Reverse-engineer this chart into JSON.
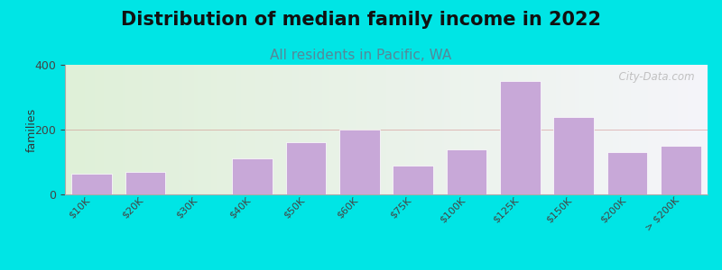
{
  "title": "Distribution of median family income in 2022",
  "subtitle": "All residents in Pacific, WA",
  "ylabel": "families",
  "categories": [
    "$10K",
    "$20K",
    "$30K",
    "$40K",
    "$50K",
    "$60K",
    "$75K",
    "$100K",
    "$125K",
    "$150K",
    "$200K",
    "> $200K"
  ],
  "values": [
    65,
    70,
    0,
    110,
    160,
    200,
    90,
    140,
    350,
    240,
    130,
    150
  ],
  "bar_color": "#c8a8d8",
  "bar_edgecolor": "#ffffff",
  "background_outer": "#00e5e5",
  "plot_bg_left": "#dff0d8",
  "plot_bg_right": "#f5f5fa",
  "ylim": [
    0,
    400
  ],
  "yticks": [
    0,
    200,
    400
  ],
  "title_fontsize": 15,
  "subtitle_fontsize": 11,
  "subtitle_color": "#558899",
  "watermark_text": "  City-Data.com",
  "watermark_color": "#bbbbbb"
}
